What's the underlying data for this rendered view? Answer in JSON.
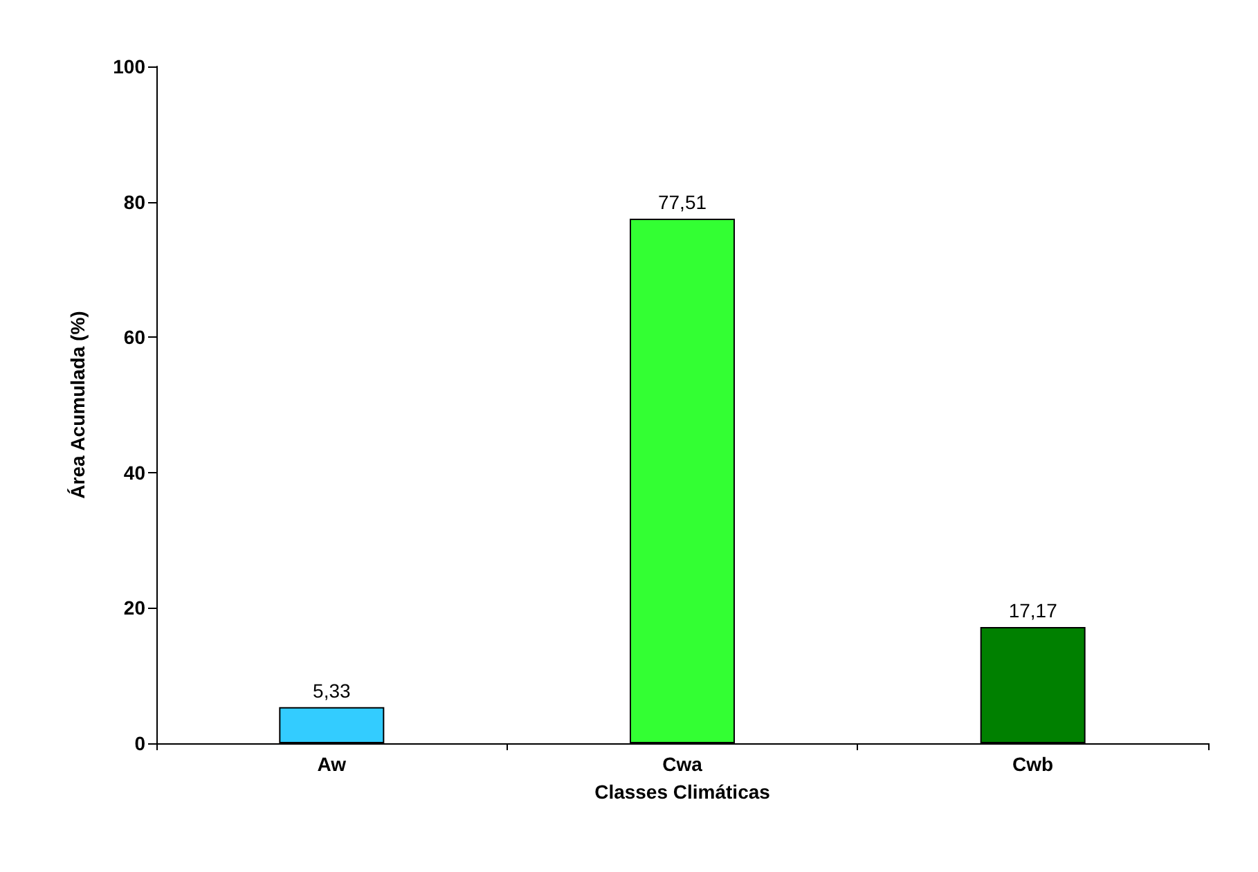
{
  "chart_data": {
    "type": "bar",
    "xlabel": "Classes Climáticas",
    "ylabel": "Área Acumulada (%)",
    "categories": [
      "Aw",
      "Cwa",
      "Cwb"
    ],
    "values": [
      5.33,
      77.51,
      17.17
    ],
    "colors": [
      "#33ccff",
      "#33ff33",
      "#008000"
    ],
    "value_labels": [
      "5,33",
      "77,51",
      "17,17"
    ],
    "ylim": [
      0,
      100
    ],
    "yticks": [
      0,
      20,
      40,
      60,
      80,
      100
    ],
    "grid": false
  }
}
